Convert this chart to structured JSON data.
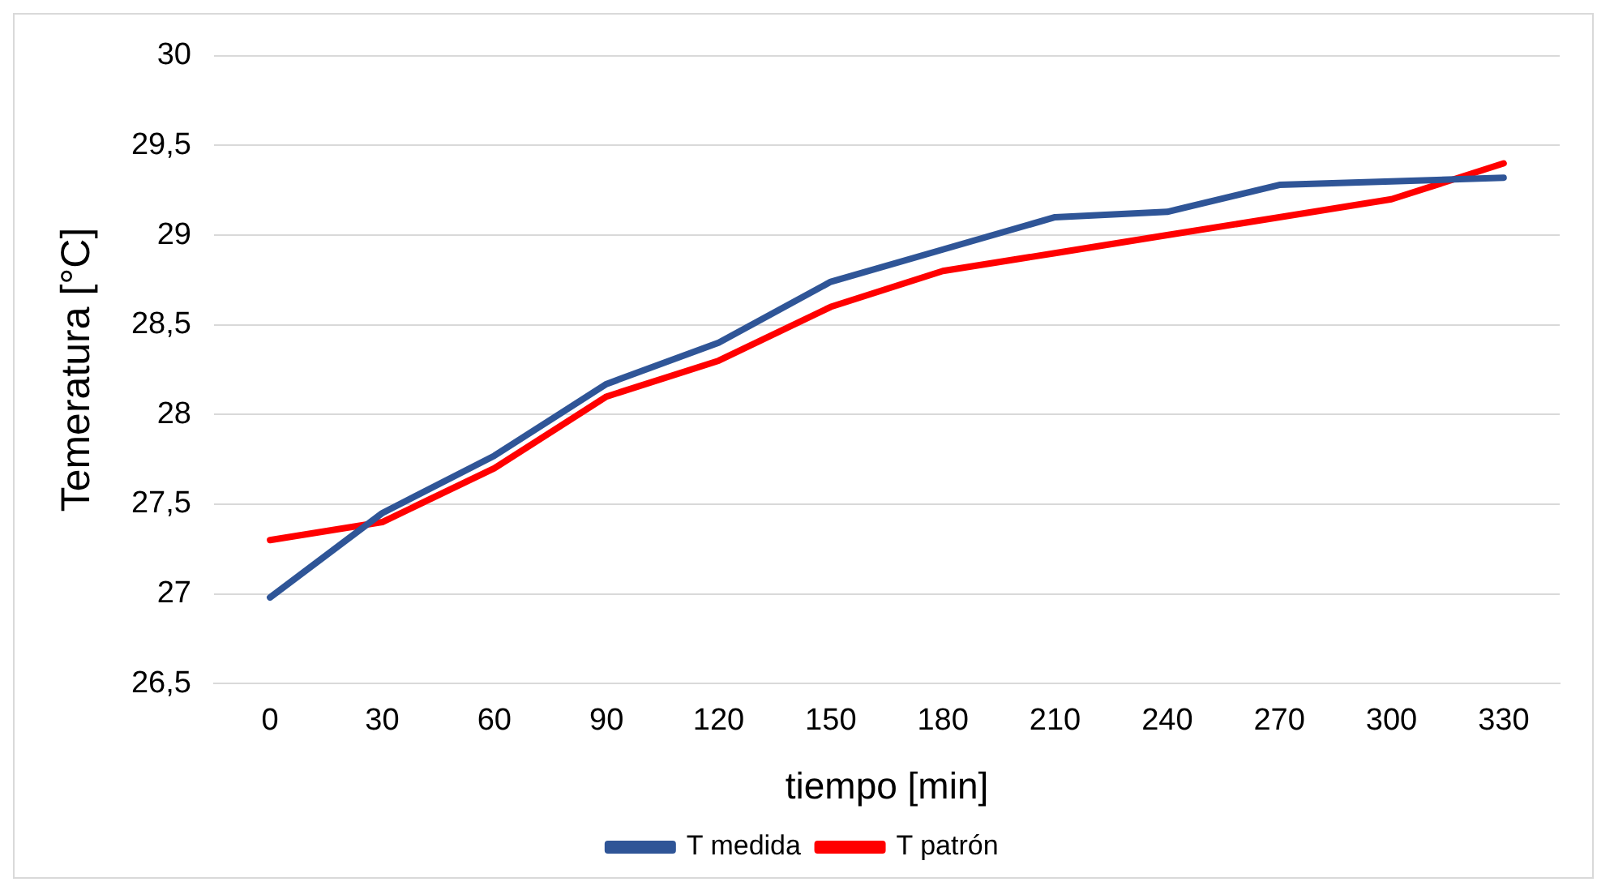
{
  "chart_data": {
    "type": "line",
    "xlabel": "tiempo [min]",
    "ylabel": "Temeratura [°C]",
    "categories": [
      "0",
      "30",
      "60",
      "90",
      "120",
      "150",
      "180",
      "210",
      "240",
      "270",
      "300",
      "330"
    ],
    "series": [
      {
        "name": "T medida",
        "color": "#2f5597",
        "values": [
          26.98,
          27.45,
          27.77,
          28.17,
          28.4,
          28.74,
          28.92,
          29.1,
          29.13,
          29.28,
          29.3,
          29.32
        ]
      },
      {
        "name": "T patrón",
        "color": "#ff0000",
        "values": [
          27.3,
          27.4,
          27.7,
          28.1,
          28.3,
          28.6,
          28.8,
          28.9,
          29.0,
          29.1,
          29.2,
          29.4
        ]
      }
    ],
    "ylim": [
      26.5,
      30
    ],
    "yticks": [
      {
        "value": 26.5,
        "label": "26,5"
      },
      27,
      {
        "value": 27.5,
        "label": "27,5"
      },
      28,
      {
        "value": 28.5,
        "label": "28,5"
      },
      29,
      {
        "value": 29.5,
        "label": "29,5"
      },
      30
    ],
    "grid": "y",
    "legend": "bottom",
    "marker": "none",
    "line_style": "solid"
  }
}
